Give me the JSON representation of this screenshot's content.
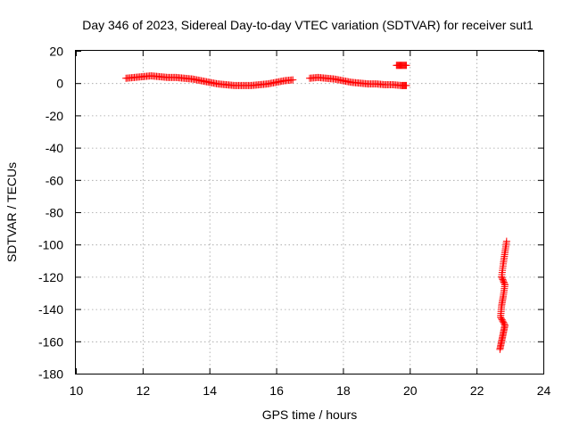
{
  "chart_data": {
    "type": "scatter",
    "title": "Day 346 of 2023, Sidereal Day-to-day VTEC variation (SDTVAR) for receiver sut1",
    "xlabel": "GPS time / hours",
    "ylabel": "SDTVAR / TECUs",
    "xlim": [
      10,
      24
    ],
    "ylim": [
      -180,
      20
    ],
    "xticks": [
      "10",
      "12",
      "14",
      "16",
      "18",
      "20",
      "22",
      "24"
    ],
    "yticks": [
      "20",
      "0",
      "-20",
      "-40",
      "-60",
      "-80",
      "-100",
      "-120",
      "-140",
      "-160",
      "-180"
    ],
    "grid": true,
    "legend": "none",
    "marker": "plus",
    "color": "#ff0000",
    "series": [
      {
        "points": [
          [
            11.5,
            3.0
          ],
          [
            11.75,
            3.5
          ],
          [
            12.0,
            4.0
          ],
          [
            12.25,
            4.5
          ],
          [
            12.5,
            4.0
          ],
          [
            12.75,
            3.5
          ],
          [
            13.0,
            3.5
          ],
          [
            13.25,
            3.0
          ],
          [
            13.5,
            2.5
          ],
          [
            13.75,
            1.5
          ],
          [
            14.0,
            0.5
          ],
          [
            14.25,
            -0.5
          ],
          [
            14.5,
            -1.0
          ],
          [
            14.75,
            -1.5
          ],
          [
            15.0,
            -1.5
          ],
          [
            15.25,
            -1.5
          ],
          [
            15.5,
            -1.0
          ],
          [
            15.75,
            -0.5
          ],
          [
            16.0,
            0.5
          ],
          [
            16.25,
            1.5
          ],
          [
            16.5,
            2.0
          ],
          [
            17.0,
            3.0
          ],
          [
            17.25,
            3.5
          ],
          [
            17.5,
            3.0
          ],
          [
            17.75,
            2.5
          ],
          [
            18.0,
            1.5
          ],
          [
            18.25,
            0.5
          ],
          [
            18.5,
            0.0
          ],
          [
            18.75,
            -0.5
          ],
          [
            19.0,
            -0.5
          ],
          [
            19.25,
            -1.0
          ],
          [
            19.5,
            -1.0
          ],
          [
            19.75,
            -1.5
          ],
          [
            19.9,
            -1.5
          ],
          [
            19.6,
            11.0
          ],
          [
            19.75,
            11.0
          ],
          [
            19.9,
            11.0
          ],
          [
            22.7,
            -165.0
          ],
          [
            22.75,
            -160.0
          ],
          [
            22.8,
            -155.0
          ],
          [
            22.85,
            -150.0
          ],
          [
            22.72,
            -145.0
          ],
          [
            22.75,
            -138.0
          ],
          [
            22.8,
            -132.0
          ],
          [
            22.85,
            -125.0
          ],
          [
            22.75,
            -120.0
          ],
          [
            22.8,
            -112.0
          ],
          [
            22.85,
            -105.0
          ],
          [
            22.9,
            -98.0
          ]
        ]
      }
    ]
  }
}
